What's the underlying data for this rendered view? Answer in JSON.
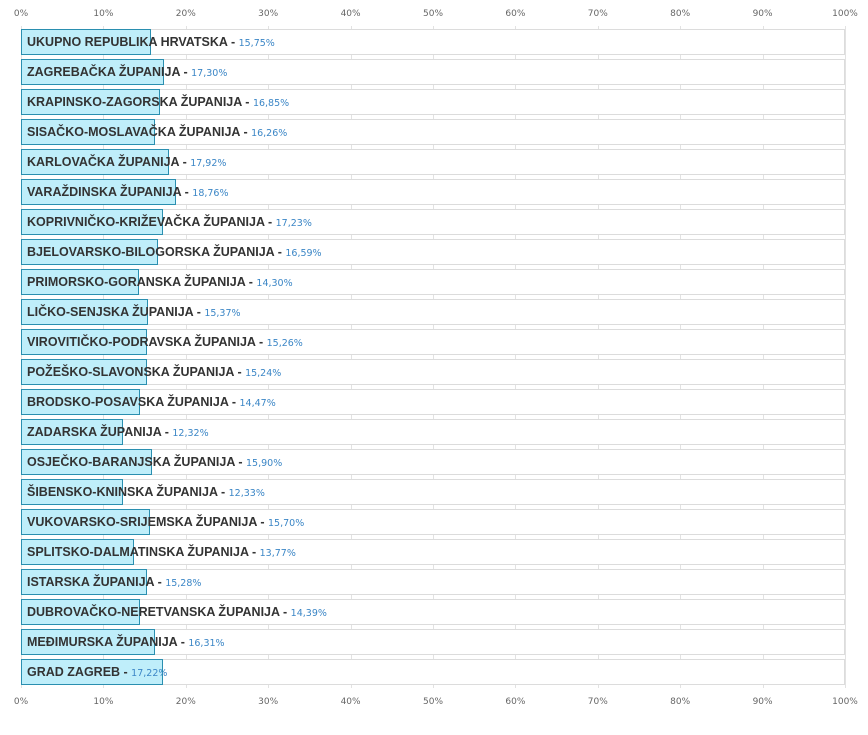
{
  "chart_data": {
    "type": "bar",
    "orientation": "horizontal",
    "xlim": [
      0,
      100
    ],
    "x_ticks": [
      "0%",
      "10%",
      "20%",
      "30%",
      "40%",
      "50%",
      "60%",
      "70%",
      "80%",
      "90%",
      "100%"
    ],
    "separator": "-",
    "grid": true,
    "colors": {
      "bar_fill": "#bfeefa",
      "bar_border": "#2a8fb0",
      "value_text": "#3b86c6",
      "label_text": "#333333"
    },
    "rows": [
      {
        "label": "UKUPNO REPUBLIKA HRVATSKA",
        "value": 15.75,
        "value_label": "15,75%"
      },
      {
        "label": "ZAGREBAČKA ŽUPANIJA",
        "value": 17.3,
        "value_label": "17,30%"
      },
      {
        "label": "KRAPINSKO-ZAGORSKA ŽUPANIJA",
        "value": 16.85,
        "value_label": "16,85%"
      },
      {
        "label": "SISAČKO-MOSLAVAČKA ŽUPANIJA",
        "value": 16.26,
        "value_label": "16,26%"
      },
      {
        "label": "KARLOVAČKA ŽUPANIJA",
        "value": 17.92,
        "value_label": "17,92%"
      },
      {
        "label": "VARAŽDINSKA ŽUPANIJA",
        "value": 18.76,
        "value_label": "18,76%"
      },
      {
        "label": "KOPRIVNIČKO-KRIŽEVAČKA ŽUPANIJA",
        "value": 17.23,
        "value_label": "17,23%"
      },
      {
        "label": "BJELOVARSKO-BILOGORSKA ŽUPANIJA",
        "value": 16.59,
        "value_label": "16,59%"
      },
      {
        "label": "PRIMORSKO-GORANSKA ŽUPANIJA",
        "value": 14.3,
        "value_label": "14,30%"
      },
      {
        "label": "LIČKO-SENJSKA ŽUPANIJA",
        "value": 15.37,
        "value_label": "15,37%"
      },
      {
        "label": "VIROVITIČKO-PODRAVSKA ŽUPANIJA",
        "value": 15.26,
        "value_label": "15,26%"
      },
      {
        "label": "POŽEŠKO-SLAVONSKA ŽUPANIJA",
        "value": 15.24,
        "value_label": "15,24%"
      },
      {
        "label": "BRODSKO-POSAVSKA ŽUPANIJA",
        "value": 14.47,
        "value_label": "14,47%"
      },
      {
        "label": "ZADARSKA ŽUPANIJA",
        "value": 12.32,
        "value_label": "12,32%"
      },
      {
        "label": "OSJEČKO-BARANJSKA ŽUPANIJA",
        "value": 15.9,
        "value_label": "15,90%"
      },
      {
        "label": "ŠIBENSKO-KNINSKA ŽUPANIJA",
        "value": 12.33,
        "value_label": "12,33%"
      },
      {
        "label": "VUKOVARSKO-SRIJEMSKA ŽUPANIJA",
        "value": 15.7,
        "value_label": "15,70%"
      },
      {
        "label": "SPLITSKO-DALMATINSKA ŽUPANIJA",
        "value": 13.77,
        "value_label": "13,77%"
      },
      {
        "label": "ISTARSKA ŽUPANIJA",
        "value": 15.28,
        "value_label": "15,28%"
      },
      {
        "label": "DUBROVAČKO-NERETVANSKA ŽUPANIJA",
        "value": 14.39,
        "value_label": "14,39%"
      },
      {
        "label": "MEĐIMURSKA ŽUPANIJA",
        "value": 16.31,
        "value_label": "16,31%"
      },
      {
        "label": "GRAD ZAGREB",
        "value": 17.22,
        "value_label": "17,22%"
      }
    ]
  }
}
